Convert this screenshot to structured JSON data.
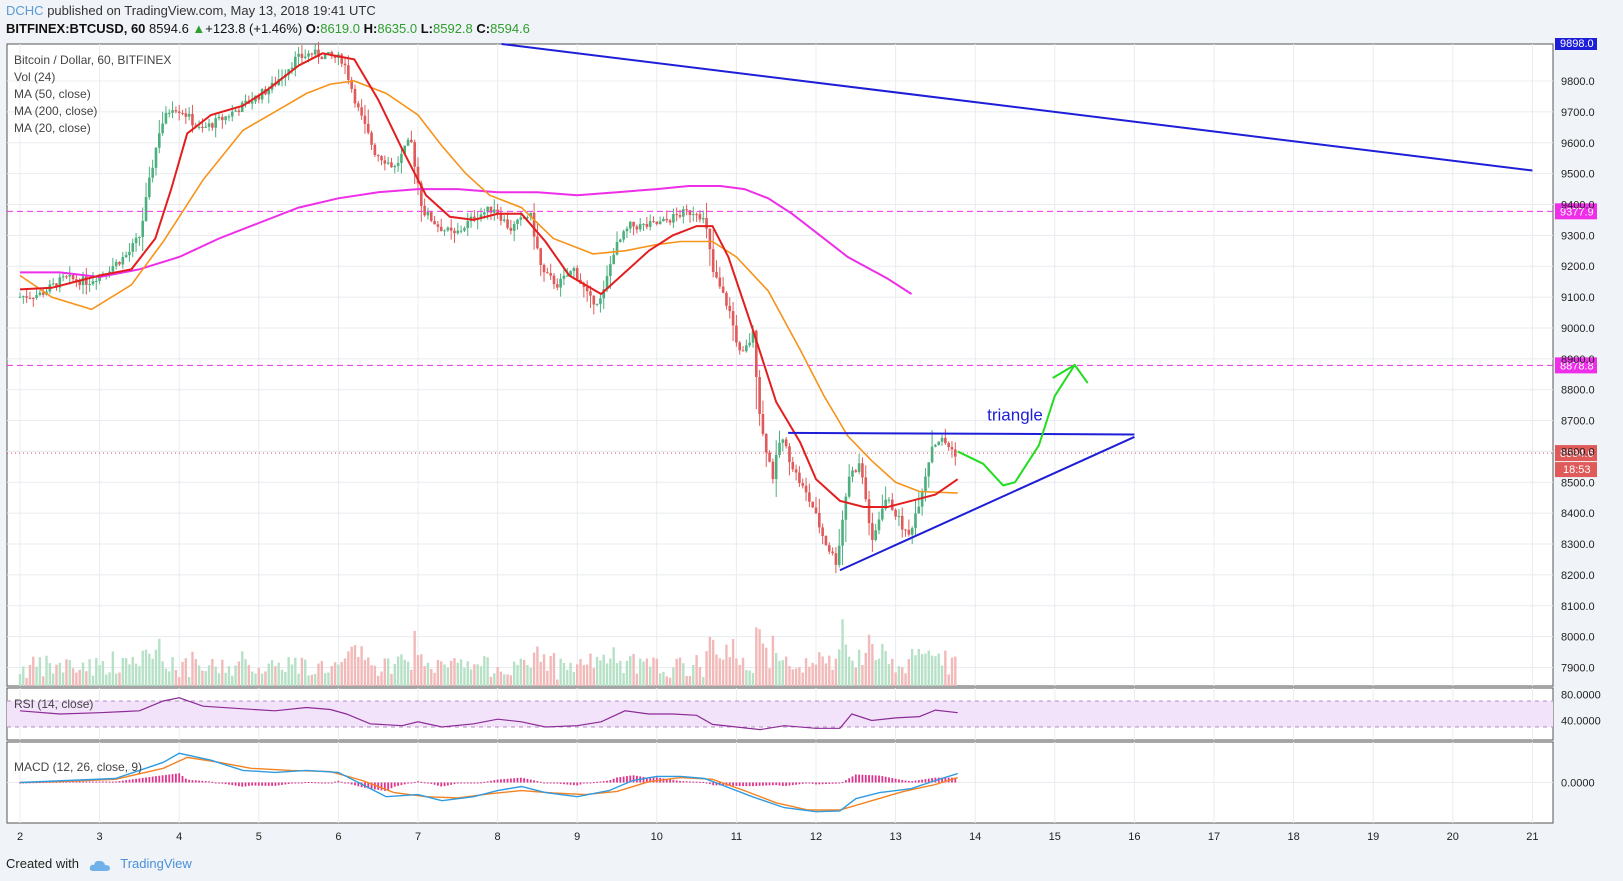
{
  "header": {
    "user": "DCHC",
    "published": "published on TradingView.com, May 13, 2018 19:41 UTC",
    "symbol": "BITFINEX:BTCUSD, 60",
    "price": "8594.6",
    "change_arrow": "▲",
    "change": "+123.8 (+1.46%)",
    "o_label": "O:",
    "o": "8619.0",
    "h_label": "H:",
    "h": "8635.0",
    "l_label": "L:",
    "l": "8592.8",
    "c_label": "C:",
    "c": "8594.6"
  },
  "legend": {
    "title": "Bitcoin / Dollar, 60, BITFINEX",
    "vol": "Vol (24)",
    "ma50": "MA (50, close)",
    "ma200": "MA (200, close)",
    "ma20": "MA (20, close)",
    "rsi": "RSI (14, close)",
    "macd": "MACD (12, 26, close, 9)"
  },
  "footer": {
    "created": "Created with",
    "brand": "TradingView"
  },
  "colors": {
    "ma20": "#e31e1e",
    "ma50": "#f7931a",
    "ma200": "#ee2ee8",
    "up": "#4caf7d",
    "down": "#e05a5a",
    "trend": "#1e1ed8",
    "projection": "#22dd22",
    "rsi": "#8b2b96",
    "macd": "#2f9be0",
    "signal": "#f58220"
  },
  "chart_data": {
    "type": "candlestick",
    "timeframe": "60",
    "ylim": [
      7840,
      9920
    ],
    "x_ticks": [
      "2",
      "3",
      "4",
      "5",
      "6",
      "7",
      "8",
      "9",
      "10",
      "11",
      "12",
      "13",
      "14",
      "15",
      "16",
      "17",
      "18",
      "19",
      "20",
      "21"
    ],
    "y_ticks": [
      "9800.0",
      "9700.0",
      "9600.0",
      "9500.0",
      "9400.0",
      "9300.0",
      "9200.0",
      "9100.0",
      "9000.0",
      "8900.0",
      "8800.0",
      "8700.0",
      "8600.0",
      "8500.0",
      "8400.0",
      "8300.0",
      "8200.0",
      "8100.0",
      "8000.0",
      "7900.0"
    ],
    "price_levels": [
      {
        "value": 9377.9,
        "label": "9377.9",
        "color": "#ee2ee8",
        "style": "dashed"
      },
      {
        "value": 8878.8,
        "label": "8878.8",
        "color": "#ee2ee8",
        "style": "dashed"
      },
      {
        "value": 8594.6,
        "label": "8594.6",
        "color": "#e05a5a",
        "style": "dotted"
      }
    ],
    "top_price_label": "9898.0",
    "countdown": "18:53",
    "ma20_path": [
      [
        2.0,
        9125
      ],
      [
        2.4,
        9130
      ],
      [
        3.0,
        9170
      ],
      [
        3.4,
        9190
      ],
      [
        3.7,
        9290
      ],
      [
        3.9,
        9450
      ],
      [
        4.1,
        9630
      ],
      [
        4.4,
        9690
      ],
      [
        4.8,
        9720
      ],
      [
        5.1,
        9770
      ],
      [
        5.5,
        9850
      ],
      [
        5.8,
        9890
      ],
      [
        6.2,
        9870
      ],
      [
        6.5,
        9740
      ],
      [
        6.8,
        9580
      ],
      [
        7.1,
        9430
      ],
      [
        7.4,
        9360
      ],
      [
        7.7,
        9350
      ],
      [
        8.0,
        9370
      ],
      [
        8.3,
        9370
      ],
      [
        8.6,
        9280
      ],
      [
        8.9,
        9170
      ],
      [
        9.3,
        9110
      ],
      [
        9.6,
        9180
      ],
      [
        9.9,
        9250
      ],
      [
        10.2,
        9300
      ],
      [
        10.5,
        9330
      ],
      [
        10.7,
        9330
      ],
      [
        10.9,
        9230
      ],
      [
        11.2,
        9000
      ],
      [
        11.5,
        8760
      ],
      [
        11.8,
        8630
      ],
      [
        12.0,
        8510
      ],
      [
        12.3,
        8440
      ],
      [
        12.6,
        8420
      ],
      [
        12.9,
        8420
      ],
      [
        13.2,
        8440
      ],
      [
        13.5,
        8460
      ],
      [
        13.78,
        8510
      ]
    ],
    "ma50_path": [
      [
        2.0,
        9170
      ],
      [
        2.4,
        9100
      ],
      [
        2.9,
        9060
      ],
      [
        3.4,
        9140
      ],
      [
        3.8,
        9280
      ],
      [
        4.3,
        9480
      ],
      [
        4.8,
        9640
      ],
      [
        5.2,
        9700
      ],
      [
        5.6,
        9760
      ],
      [
        5.9,
        9790
      ],
      [
        6.2,
        9800
      ],
      [
        6.6,
        9760
      ],
      [
        7.0,
        9690
      ],
      [
        7.3,
        9590
      ],
      [
        7.6,
        9500
      ],
      [
        7.9,
        9430
      ],
      [
        8.3,
        9390
      ],
      [
        8.7,
        9290
      ],
      [
        9.2,
        9240
      ],
      [
        9.6,
        9250
      ],
      [
        10.0,
        9270
      ],
      [
        10.3,
        9280
      ],
      [
        10.7,
        9280
      ],
      [
        11.0,
        9230
      ],
      [
        11.4,
        9120
      ],
      [
        11.8,
        8930
      ],
      [
        12.1,
        8780
      ],
      [
        12.4,
        8650
      ],
      [
        12.7,
        8570
      ],
      [
        13.0,
        8500
      ],
      [
        13.3,
        8470
      ],
      [
        13.78,
        8465
      ]
    ],
    "ma200_path": [
      [
        2.0,
        9180
      ],
      [
        2.5,
        9180
      ],
      [
        3.0,
        9165
      ],
      [
        3.5,
        9190
      ],
      [
        4.0,
        9230
      ],
      [
        4.5,
        9290
      ],
      [
        5.0,
        9340
      ],
      [
        5.5,
        9390
      ],
      [
        6.0,
        9420
      ],
      [
        6.5,
        9440
      ],
      [
        7.0,
        9450
      ],
      [
        7.5,
        9450
      ],
      [
        8.0,
        9440
      ],
      [
        8.5,
        9440
      ],
      [
        9.0,
        9430
      ],
      [
        9.5,
        9440
      ],
      [
        10.0,
        9450
      ],
      [
        10.4,
        9460
      ],
      [
        10.8,
        9460
      ],
      [
        11.1,
        9450
      ],
      [
        11.4,
        9420
      ],
      [
        11.7,
        9370
      ],
      [
        12.0,
        9310
      ],
      [
        12.4,
        9230
      ],
      [
        12.9,
        9160
      ],
      [
        13.2,
        9110
      ]
    ],
    "candles_note": "hourly OHLC estimated from the price path",
    "price_path": [
      [
        2.0,
        9100
      ],
      [
        2.3,
        9110
      ],
      [
        2.6,
        9160
      ],
      [
        2.9,
        9150
      ],
      [
        3.2,
        9200
      ],
      [
        3.4,
        9240
      ],
      [
        3.55,
        9300
      ],
      [
        3.65,
        9450
      ],
      [
        3.8,
        9650
      ],
      [
        3.95,
        9720
      ],
      [
        4.1,
        9700
      ],
      [
        4.3,
        9640
      ],
      [
        4.6,
        9680
      ],
      [
        4.9,
        9730
      ],
      [
        5.2,
        9780
      ],
      [
        5.5,
        9870
      ],
      [
        5.7,
        9890
      ],
      [
        5.9,
        9880
      ],
      [
        6.1,
        9870
      ],
      [
        6.3,
        9700
      ],
      [
        6.5,
        9570
      ],
      [
        6.75,
        9520
      ],
      [
        6.95,
        9610
      ],
      [
        7.1,
        9380
      ],
      [
        7.3,
        9330
      ],
      [
        7.5,
        9300
      ],
      [
        7.75,
        9360
      ],
      [
        8.0,
        9390
      ],
      [
        8.2,
        9320
      ],
      [
        8.45,
        9370
      ],
      [
        8.6,
        9180
      ],
      [
        8.8,
        9140
      ],
      [
        9.0,
        9190
      ],
      [
        9.2,
        9090
      ],
      [
        9.35,
        9090
      ],
      [
        9.5,
        9250
      ],
      [
        9.7,
        9330
      ],
      [
        9.9,
        9330
      ],
      [
        10.1,
        9340
      ],
      [
        10.35,
        9370
      ],
      [
        10.55,
        9380
      ],
      [
        10.65,
        9340
      ],
      [
        10.75,
        9180
      ],
      [
        10.95,
        9060
      ],
      [
        11.1,
        8900
      ],
      [
        11.25,
        8980
      ],
      [
        11.35,
        8680
      ],
      [
        11.5,
        8520
      ],
      [
        11.6,
        8650
      ],
      [
        11.8,
        8520
      ],
      [
        12.0,
        8420
      ],
      [
        12.15,
        8310
      ],
      [
        12.3,
        8240
      ],
      [
        12.45,
        8520
      ],
      [
        12.6,
        8560
      ],
      [
        12.75,
        8300
      ],
      [
        12.9,
        8450
      ],
      [
        13.0,
        8420
      ],
      [
        13.2,
        8320
      ],
      [
        13.35,
        8450
      ],
      [
        13.5,
        8620
      ],
      [
        13.6,
        8640
      ],
      [
        13.7,
        8620
      ],
      [
        13.78,
        8594.6
      ]
    ],
    "annotations": [
      {
        "type": "trendline",
        "from": [
          8.05,
          9920
        ],
        "to": [
          21.0,
          9510
        ],
        "color": "#1e1ed8"
      },
      {
        "type": "trendline",
        "from": [
          11.65,
          8660
        ],
        "to": [
          16.0,
          8655
        ],
        "color": "#1e1ed8"
      },
      {
        "type": "trendline",
        "from": [
          12.3,
          8215
        ],
        "to": [
          16.0,
          8647
        ],
        "color": "#1e1ed8"
      },
      {
        "type": "text",
        "text": "triangle",
        "x": 14.15,
        "y": 8700,
        "color": "#1e1ed8"
      },
      {
        "type": "projection",
        "path": [
          [
            13.78,
            8600
          ],
          [
            14.1,
            8560
          ],
          [
            14.35,
            8490
          ],
          [
            14.5,
            8500
          ],
          [
            14.8,
            8620
          ],
          [
            15.0,
            8780
          ],
          [
            15.25,
            8880
          ]
        ],
        "color": "#22dd22"
      }
    ],
    "rsi": {
      "ylim": [
        10,
        90
      ],
      "levels": [
        70,
        30
      ],
      "ticks": [
        "80.0000",
        "40.0000"
      ],
      "path": [
        [
          2.0,
          55
        ],
        [
          2.5,
          50
        ],
        [
          3.0,
          52
        ],
        [
          3.5,
          55
        ],
        [
          3.8,
          70
        ],
        [
          4.0,
          75
        ],
        [
          4.3,
          62
        ],
        [
          4.8,
          58
        ],
        [
          5.2,
          55
        ],
        [
          5.6,
          60
        ],
        [
          5.9,
          57
        ],
        [
          6.1,
          50
        ],
        [
          6.4,
          35
        ],
        [
          6.8,
          32
        ],
        [
          7.0,
          38
        ],
        [
          7.3,
          30
        ],
        [
          7.7,
          35
        ],
        [
          8.0,
          42
        ],
        [
          8.3,
          38
        ],
        [
          8.6,
          30
        ],
        [
          9.0,
          32
        ],
        [
          9.3,
          38
        ],
        [
          9.6,
          55
        ],
        [
          9.9,
          50
        ],
        [
          10.2,
          50
        ],
        [
          10.5,
          48
        ],
        [
          10.7,
          34
        ],
        [
          11.0,
          30
        ],
        [
          11.3,
          26
        ],
        [
          11.6,
          32
        ],
        [
          12.0,
          28
        ],
        [
          12.3,
          28
        ],
        [
          12.45,
          50
        ],
        [
          12.7,
          40
        ],
        [
          13.0,
          44
        ],
        [
          13.3,
          46
        ],
        [
          13.5,
          56
        ],
        [
          13.78,
          52
        ]
      ]
    },
    "macd": {
      "ylim": [
        -1,
        1
      ],
      "ticks": [
        "0.0000"
      ],
      "macd_path": [
        [
          2.0,
          0.0
        ],
        [
          2.6,
          0.05
        ],
        [
          3.2,
          0.1
        ],
        [
          3.8,
          0.5
        ],
        [
          4.0,
          0.72
        ],
        [
          4.4,
          0.55
        ],
        [
          4.8,
          0.3
        ],
        [
          5.2,
          0.25
        ],
        [
          5.6,
          0.3
        ],
        [
          6.0,
          0.25
        ],
        [
          6.3,
          -0.05
        ],
        [
          6.6,
          -0.35
        ],
        [
          7.0,
          -0.3
        ],
        [
          7.3,
          -0.45
        ],
        [
          7.7,
          -0.35
        ],
        [
          8.0,
          -0.2
        ],
        [
          8.3,
          -0.1
        ],
        [
          8.6,
          -0.25
        ],
        [
          9.0,
          -0.35
        ],
        [
          9.4,
          -0.2
        ],
        [
          9.7,
          0.05
        ],
        [
          10.0,
          0.15
        ],
        [
          10.3,
          0.15
        ],
        [
          10.6,
          0.1
        ],
        [
          10.8,
          -0.05
        ],
        [
          11.2,
          -0.35
        ],
        [
          11.6,
          -0.62
        ],
        [
          12.0,
          -0.72
        ],
        [
          12.3,
          -0.7
        ],
        [
          12.5,
          -0.4
        ],
        [
          12.8,
          -0.25
        ],
        [
          13.2,
          -0.15
        ],
        [
          13.5,
          0.05
        ],
        [
          13.78,
          0.22
        ]
      ],
      "signal_path": [
        [
          2.0,
          0.0
        ],
        [
          2.6,
          0.03
        ],
        [
          3.2,
          0.08
        ],
        [
          3.8,
          0.35
        ],
        [
          4.1,
          0.62
        ],
        [
          4.5,
          0.5
        ],
        [
          4.9,
          0.35
        ],
        [
          5.4,
          0.3
        ],
        [
          5.9,
          0.27
        ],
        [
          6.3,
          0.05
        ],
        [
          6.7,
          -0.25
        ],
        [
          7.1,
          -0.35
        ],
        [
          7.5,
          -0.38
        ],
        [
          7.9,
          -0.28
        ],
        [
          8.3,
          -0.2
        ],
        [
          8.7,
          -0.26
        ],
        [
          9.1,
          -0.3
        ],
        [
          9.5,
          -0.22
        ],
        [
          9.9,
          0.02
        ],
        [
          10.3,
          0.12
        ],
        [
          10.7,
          0.08
        ],
        [
          11.1,
          -0.2
        ],
        [
          11.5,
          -0.5
        ],
        [
          11.9,
          -0.68
        ],
        [
          12.3,
          -0.68
        ],
        [
          12.7,
          -0.45
        ],
        [
          13.1,
          -0.22
        ],
        [
          13.5,
          -0.05
        ],
        [
          13.78,
          0.12
        ]
      ]
    }
  }
}
